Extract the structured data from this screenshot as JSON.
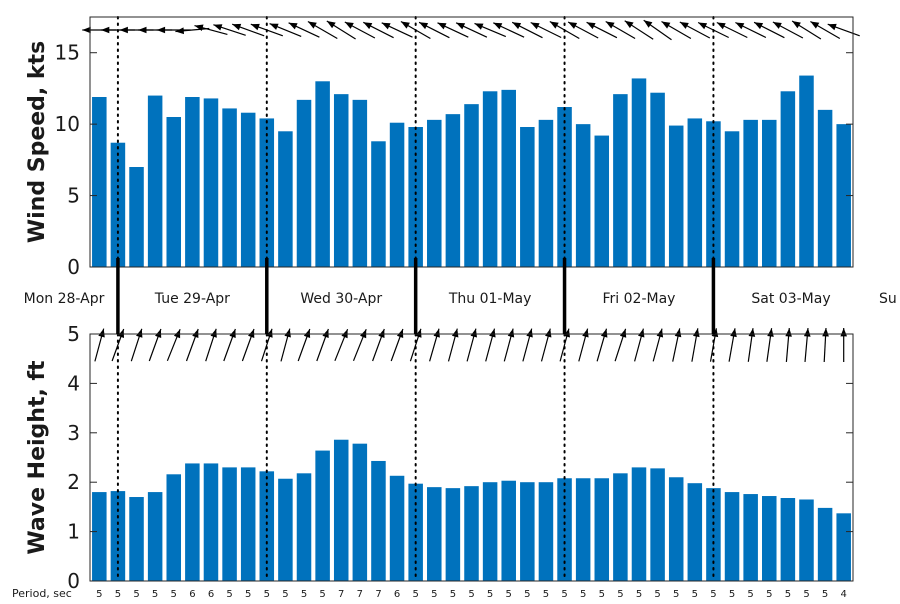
{
  "chart_data": [
    {
      "type": "bar",
      "ylabel": "Wind Speed, kts",
      "ylim": [
        0,
        17.5
      ],
      "yticks": [
        0,
        5,
        10,
        15
      ],
      "values": [
        11.9,
        8.7,
        7.0,
        12.0,
        10.5,
        11.9,
        11.8,
        11.1,
        10.8,
        10.4,
        9.5,
        11.7,
        13.0,
        12.1,
        11.7,
        8.8,
        10.1,
        9.8,
        10.3,
        10.7,
        11.4,
        12.3,
        12.4,
        9.8,
        10.3,
        11.2,
        10.0,
        9.2,
        12.1,
        13.2,
        12.2,
        9.9,
        10.4,
        10.2,
        9.5,
        10.3,
        10.3,
        12.3,
        13.4,
        11.0,
        10.0
      ],
      "direction_arrows": "pointing west to north-west along the top",
      "bar_color": "#0072BD",
      "grid": false
    },
    {
      "type": "bar",
      "ylabel": "Wave Height, ft",
      "ylim": [
        0,
        5
      ],
      "yticks": [
        0,
        1,
        2,
        3,
        4,
        5
      ],
      "values": [
        1.8,
        1.82,
        1.7,
        1.8,
        2.16,
        2.38,
        2.38,
        2.3,
        2.3,
        2.22,
        2.07,
        2.18,
        2.64,
        2.86,
        2.78,
        2.43,
        2.13,
        1.97,
        1.9,
        1.88,
        1.92,
        2.0,
        2.03,
        2.0,
        2.0,
        2.08,
        2.08,
        2.08,
        2.18,
        2.3,
        2.28,
        2.1,
        1.98,
        1.88,
        1.8,
        1.76,
        1.72,
        1.68,
        1.65,
        1.48,
        1.37
      ],
      "period_label": "Period, sec",
      "periods": [
        5,
        5,
        5,
        5,
        5,
        6,
        6,
        5,
        5,
        5,
        5,
        5,
        5,
        7,
        7,
        7,
        6,
        5,
        5,
        5,
        5,
        5,
        5,
        5,
        5,
        5,
        5,
        5,
        5,
        5,
        5,
        5,
        5,
        5,
        5,
        5,
        5,
        5,
        5,
        5,
        4
      ],
      "direction_arrows": "pointing east to north-east along the top",
      "bar_color": "#0072BD",
      "grid": false
    }
  ],
  "day_labels": [
    "Mon 28-Apr",
    "Tue 29-Apr",
    "Wed 30-Apr",
    "Thu 01-May",
    "Fri 02-May",
    "Sat 03-May",
    "Su"
  ],
  "day_boundary_after_bar": [
    1,
    9,
    17,
    25,
    33
  ],
  "wind_dir_deg": [
    270,
    270,
    270,
    270,
    270,
    265,
    285,
    288,
    290,
    290,
    292,
    295,
    300,
    302,
    298,
    297,
    295,
    300,
    297,
    295,
    295,
    293,
    295,
    297,
    296,
    300,
    298,
    297,
    300,
    303,
    305,
    300,
    298,
    296,
    296,
    296,
    297,
    298,
    302,
    300,
    290
  ],
  "wave_dir_deg": [
    15,
    20,
    18,
    20,
    22,
    20,
    18,
    20,
    20,
    18,
    15,
    20,
    20,
    22,
    22,
    20,
    20,
    18,
    16,
    15,
    15,
    15,
    15,
    15,
    15,
    15,
    15,
    16,
    18,
    15,
    15,
    12,
    10,
    10,
    10,
    8,
    8,
    5,
    5,
    3,
    0
  ],
  "colors": {
    "bar": "#0072BD",
    "axis": "#262626",
    "text": "#1a1a1a"
  }
}
